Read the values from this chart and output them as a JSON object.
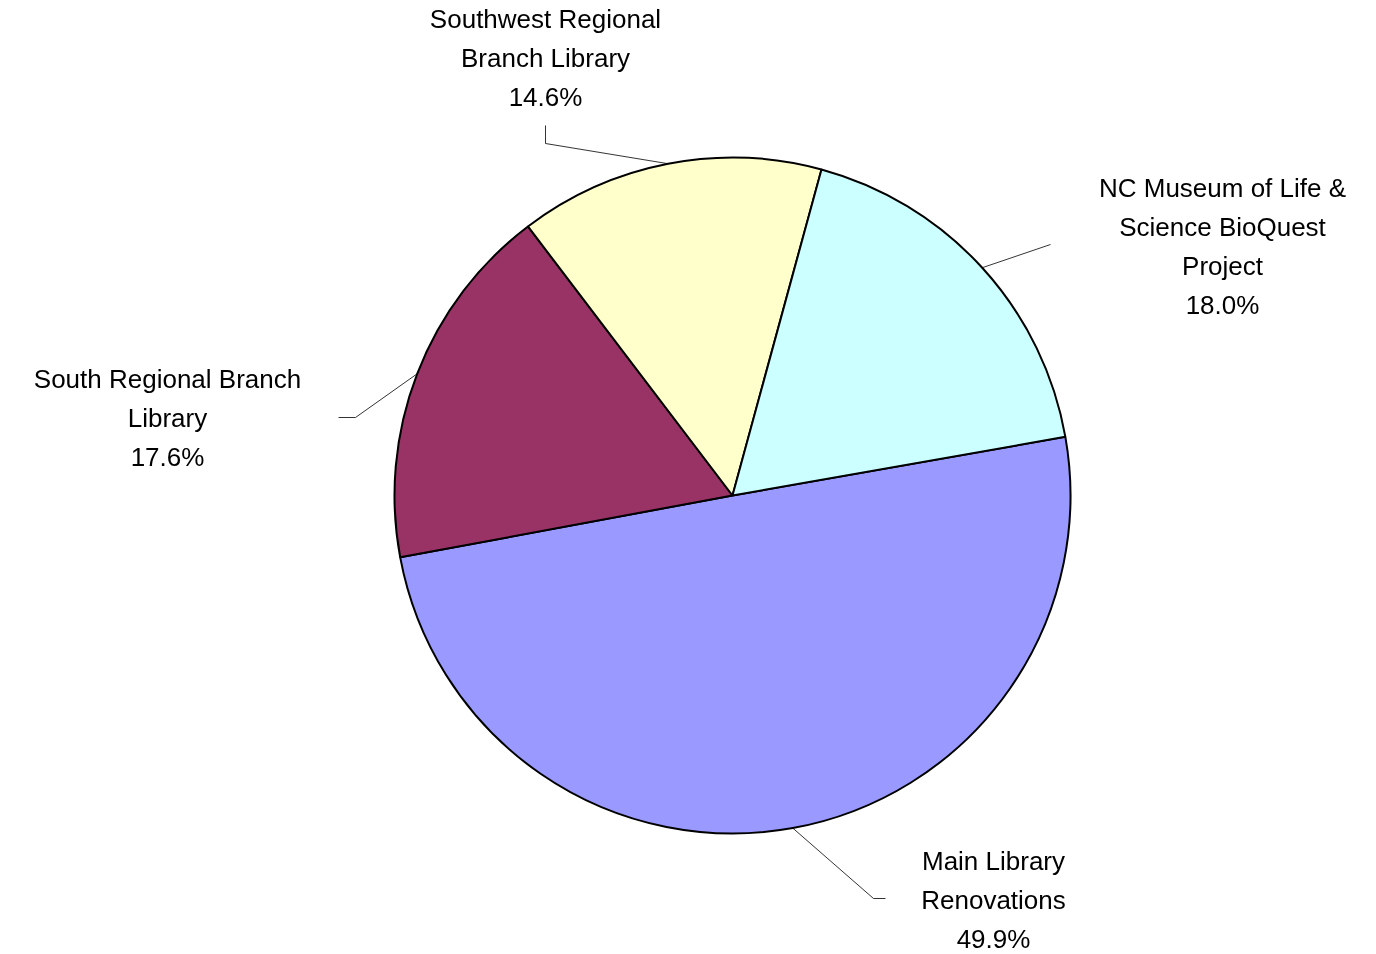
{
  "chart_data": {
    "type": "pie",
    "categories": [
      "Main Library Renovations",
      "South Regional Branch Library",
      "Southwest Regional Branch Library",
      "NC Museum of Life & Science BioQuest Project"
    ],
    "values": [
      49.9,
      17.6,
      14.6,
      18.0
    ],
    "colors": [
      "#9999ff",
      "#993366",
      "#ffffcc",
      "#ccffff"
    ],
    "value_labels": [
      "49.9%",
      "17.6%",
      "14.6%",
      "18.0%"
    ]
  }
}
